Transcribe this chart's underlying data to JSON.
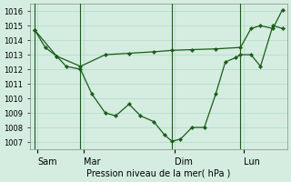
{
  "background_color": "#d4ede0",
  "grid_color": "#b2d9c4",
  "line_color": "#1a5c1a",
  "marker_color": "#1a5c1a",
  "xlabel": "Pression niveau de la mer( hPa )",
  "ylim": [
    1006.5,
    1016.5
  ],
  "yticks": [
    1007,
    1008,
    1009,
    1010,
    1011,
    1012,
    1013,
    1014,
    1015,
    1016
  ],
  "xtick_labels": [
    "Sam",
    "Mar",
    "Dim",
    "Lun"
  ],
  "xtick_positions": [
    8,
    56,
    152,
    224
  ],
  "vline_x": [
    5,
    53,
    149,
    221
  ],
  "xlim_data": [
    0,
    270
  ],
  "series1_x": [
    5,
    16,
    28,
    38,
    53,
    65,
    79,
    90,
    104,
    116,
    130,
    141,
    149,
    158,
    170,
    183,
    195,
    205,
    216,
    221,
    232,
    242,
    255,
    265
  ],
  "series1_y": [
    1014.7,
    1013.5,
    1012.9,
    1012.2,
    1012.0,
    1010.3,
    1009.0,
    1008.8,
    1009.6,
    1008.8,
    1008.4,
    1007.5,
    1007.05,
    1007.2,
    1008.0,
    1008.0,
    1010.3,
    1012.5,
    1012.8,
    1013.0,
    1013.0,
    1012.2,
    1015.0,
    1014.8
  ],
  "series2_x": [
    5,
    28,
    53,
    79,
    104,
    130,
    149,
    170,
    195,
    221,
    232,
    242,
    255,
    265
  ],
  "series2_y": [
    1014.7,
    1012.9,
    1012.2,
    1013.0,
    1013.1,
    1013.2,
    1013.3,
    1013.35,
    1013.4,
    1013.5,
    1014.8,
    1015.0,
    1014.8,
    1016.1
  ]
}
